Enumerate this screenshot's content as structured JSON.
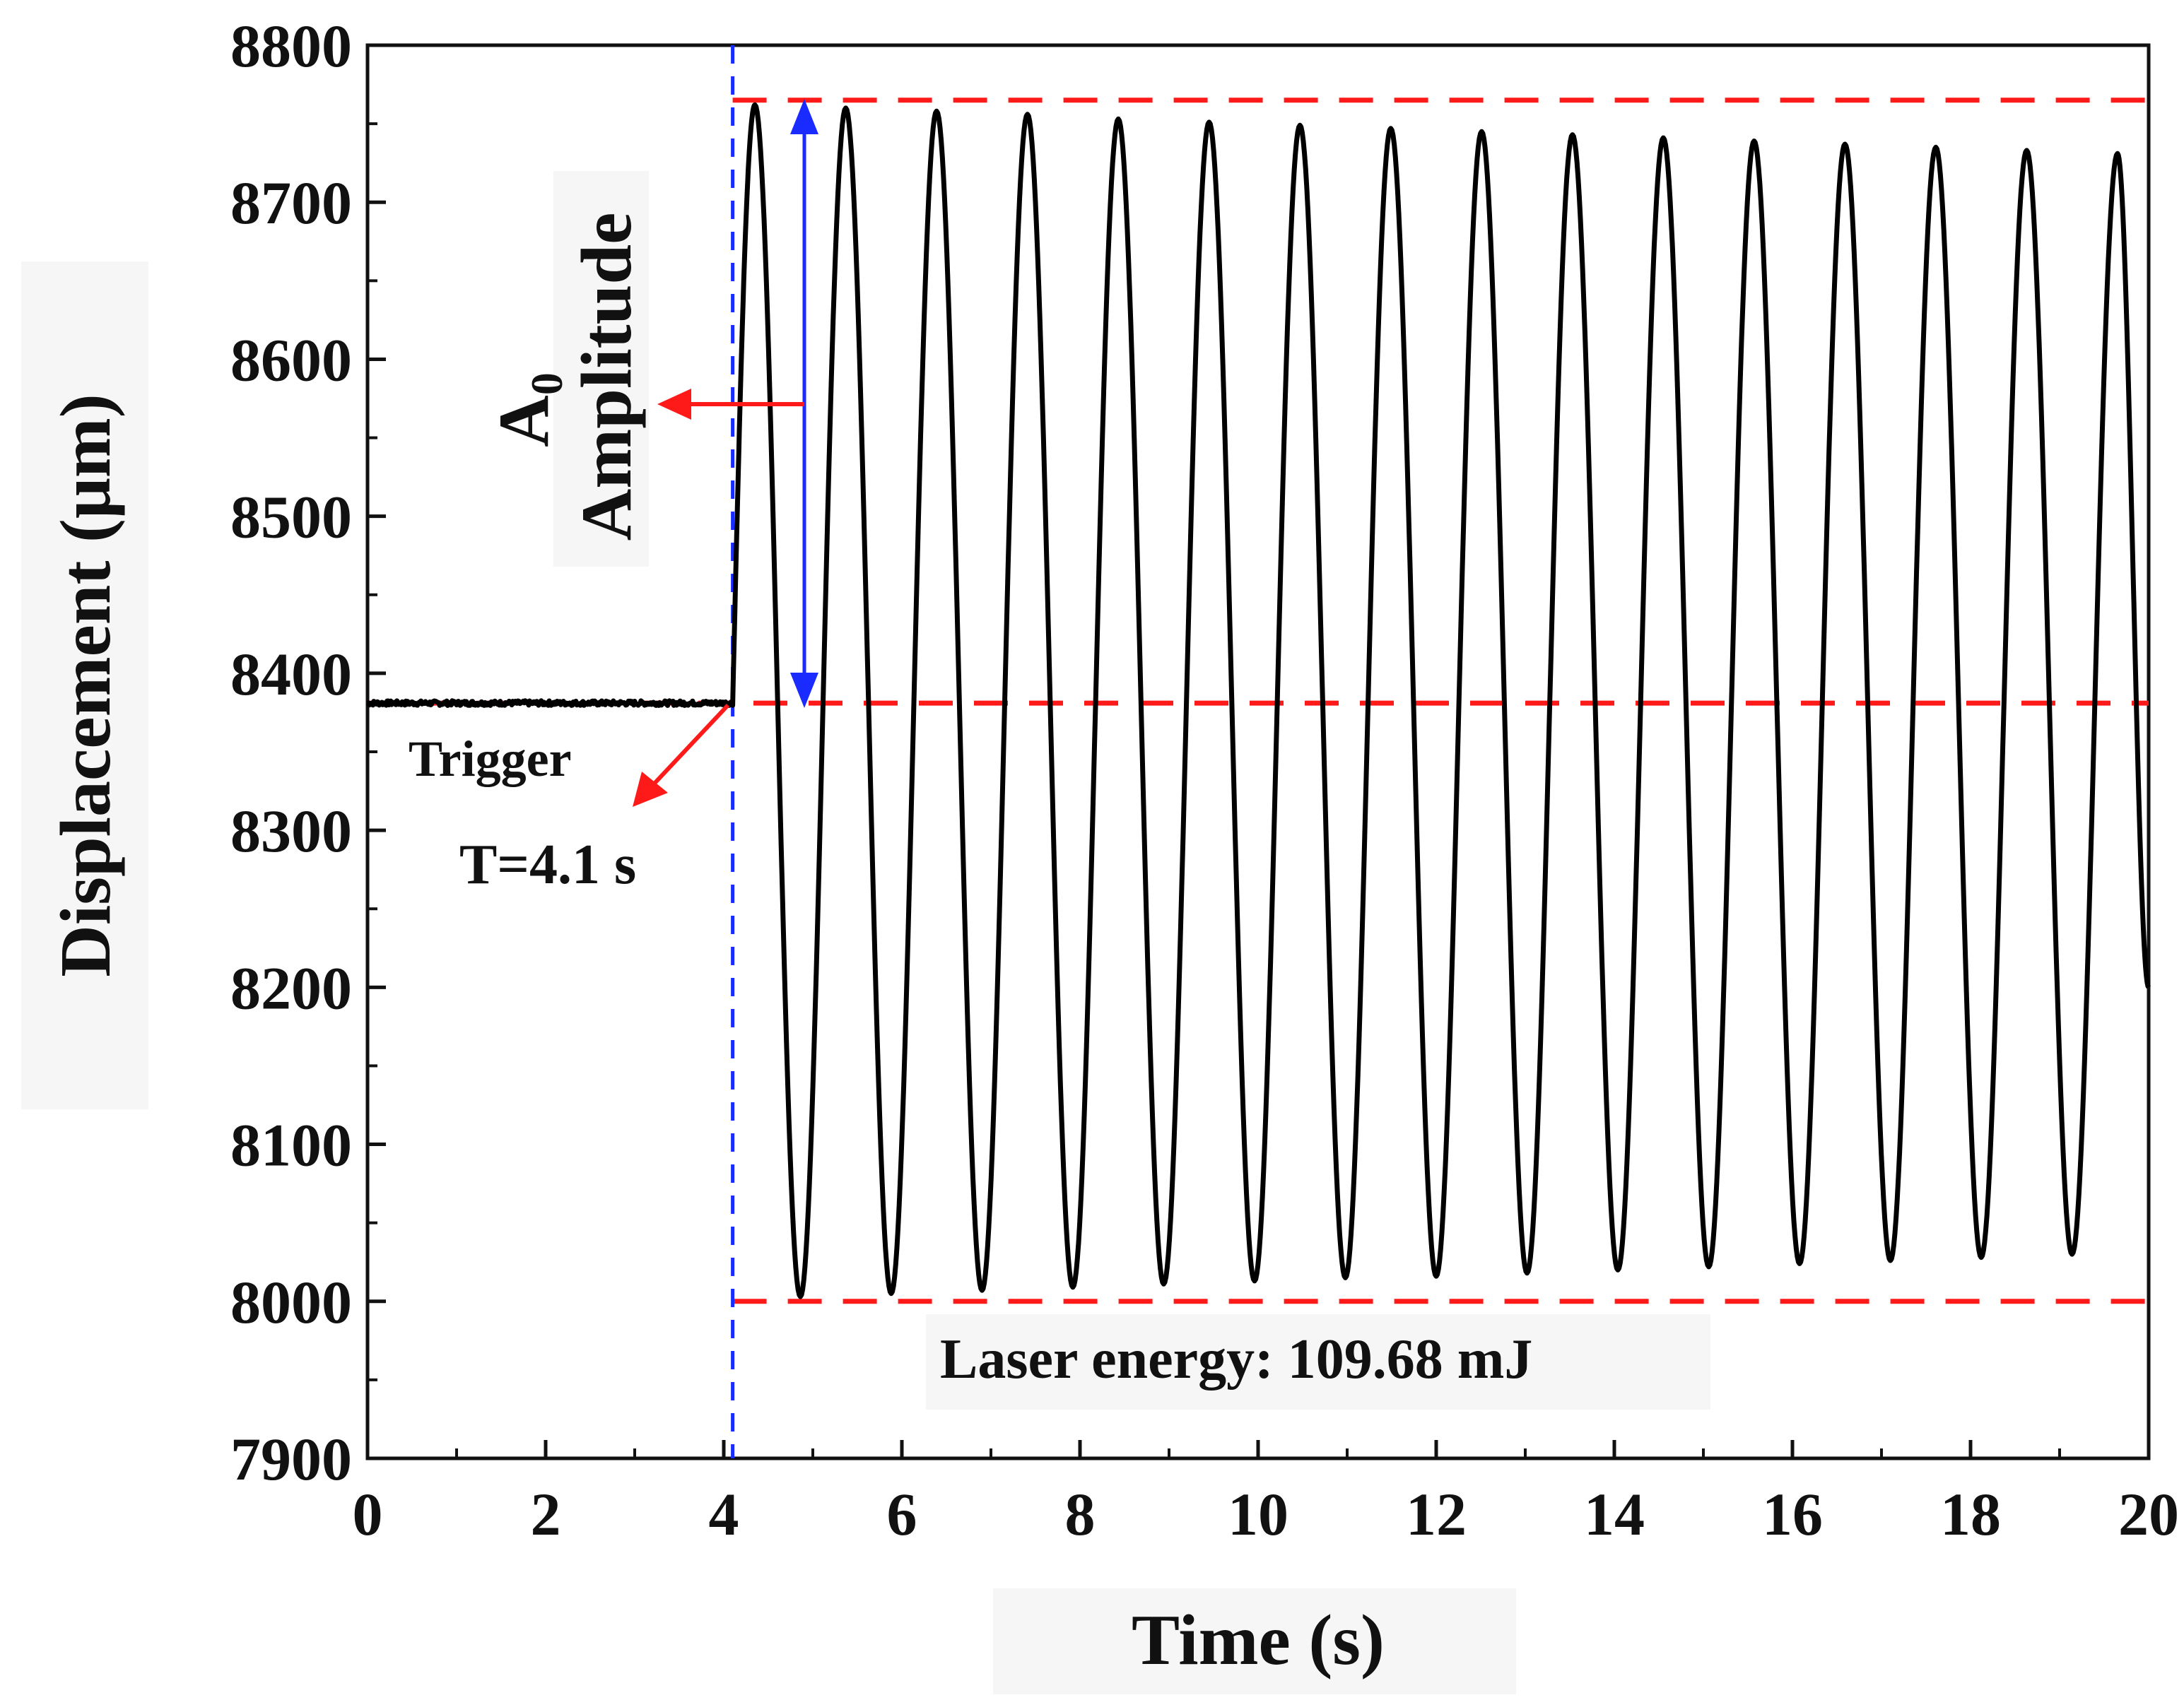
{
  "chart_data": {
    "type": "line",
    "title": "",
    "xlabel": "Time (s)",
    "ylabel": "Displacement (μm)",
    "xlim": [
      0,
      20
    ],
    "ylim": [
      7900,
      8800
    ],
    "xticks": [
      0,
      2,
      4,
      6,
      8,
      10,
      12,
      14,
      16,
      18,
      20
    ],
    "yticks": [
      7900,
      8000,
      8100,
      8200,
      8300,
      8400,
      8500,
      8600,
      8700,
      8800
    ],
    "grid": false,
    "series": [
      {
        "name": "Displacement",
        "color": "#000000",
        "baseline": 8381,
        "trigger_time": 4.1,
        "period": 1.02,
        "peaks": [
          {
            "t": 4.35,
            "y": 8762
          },
          {
            "t": 5.37,
            "y": 8760
          },
          {
            "t": 6.39,
            "y": 8758
          },
          {
            "t": 7.41,
            "y": 8756
          },
          {
            "t": 8.43,
            "y": 8753
          },
          {
            "t": 9.45,
            "y": 8751
          },
          {
            "t": 10.47,
            "y": 8749
          },
          {
            "t": 11.49,
            "y": 8747
          },
          {
            "t": 12.51,
            "y": 8745
          },
          {
            "t": 13.53,
            "y": 8743
          },
          {
            "t": 14.55,
            "y": 8741
          },
          {
            "t": 15.57,
            "y": 8739
          },
          {
            "t": 16.59,
            "y": 8737
          },
          {
            "t": 17.61,
            "y": 8735
          },
          {
            "t": 18.63,
            "y": 8733
          },
          {
            "t": 19.65,
            "y": 8731
          }
        ],
        "troughs": [
          {
            "t": 4.86,
            "y": 8003
          },
          {
            "t": 5.88,
            "y": 8005
          },
          {
            "t": 6.9,
            "y": 8007
          },
          {
            "t": 7.92,
            "y": 8009
          },
          {
            "t": 8.94,
            "y": 8011
          },
          {
            "t": 9.96,
            "y": 8013
          },
          {
            "t": 10.98,
            "y": 8015
          },
          {
            "t": 12.0,
            "y": 8016
          },
          {
            "t": 13.02,
            "y": 8018
          },
          {
            "t": 14.04,
            "y": 8020
          },
          {
            "t": 15.06,
            "y": 8022
          },
          {
            "t": 16.08,
            "y": 8024
          },
          {
            "t": 17.1,
            "y": 8026
          },
          {
            "t": 18.12,
            "y": 8028
          },
          {
            "t": 19.14,
            "y": 8030
          }
        ],
        "end": {
          "t": 20.0,
          "y": 8200
        }
      }
    ],
    "reference_lines": [
      {
        "orientation": "horizontal",
        "y": 8765,
        "x_from": 4.1,
        "x_to": 20,
        "style": "dashed",
        "color": "#ff1a1a"
      },
      {
        "orientation": "horizontal",
        "y": 8381,
        "x_from": 0,
        "x_to": 20,
        "style": "dashed",
        "color": "#ff1a1a"
      },
      {
        "orientation": "horizontal",
        "y": 8000,
        "x_from": 4.1,
        "x_to": 20,
        "style": "dashed",
        "color": "#ff1a1a"
      },
      {
        "orientation": "vertical",
        "x": 4.1,
        "style": "dashed",
        "color": "#1a2bff"
      }
    ],
    "annotations": {
      "amplitude_label": "Amplitude",
      "a0_main": "A",
      "a0_sub": "0",
      "trigger_label": "Trigger",
      "trigger_time_label": "T=4.1 s",
      "laser_energy_label": "Laser energy:",
      "laser_energy_value": "109.68 mJ"
    }
  }
}
